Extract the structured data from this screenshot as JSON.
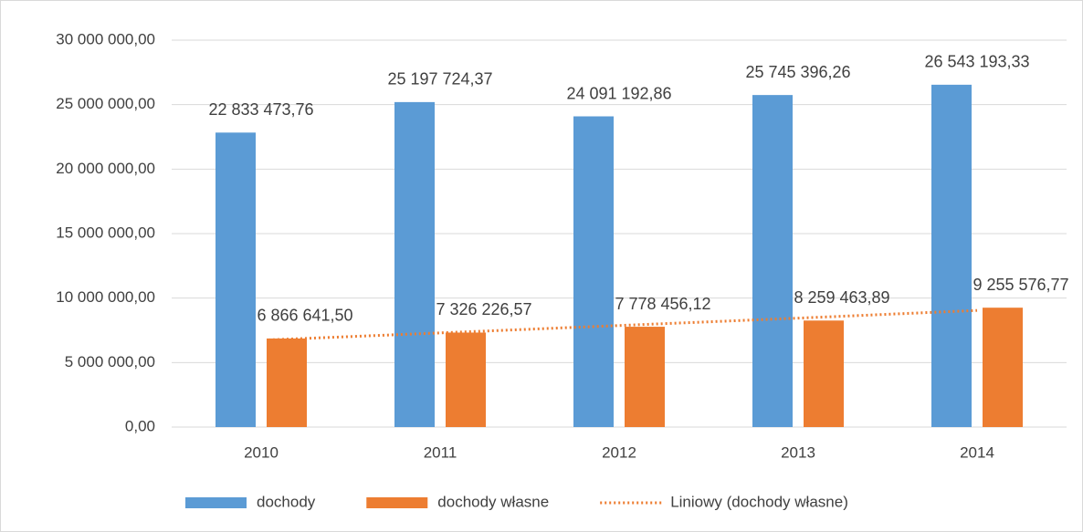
{
  "chart_data": {
    "type": "bar",
    "categories": [
      "2010",
      "2011",
      "2012",
      "2013",
      "2014"
    ],
    "series": [
      {
        "name": "dochody",
        "color": "#5b9bd5",
        "values": [
          22833473.76,
          25197724.37,
          24091192.86,
          25745396.26,
          26543193.33
        ],
        "value_labels": [
          "22 833 473,76",
          "25 197 724,37",
          "24 091 192,86",
          "25 745 396,26",
          "26 543 193,33"
        ]
      },
      {
        "name": "dochody własne",
        "color": "#ed7d31",
        "values": [
          6866641.5,
          7326226.57,
          7778456.12,
          8259463.89,
          9255576.77
        ],
        "value_labels": [
          "6 866 641,50",
          "7 326 226,57",
          "7 778 456,12",
          "8 259 463,89",
          "9 255 576,77"
        ]
      }
    ],
    "trendline": {
      "name": "Liniowy (dochody własne)",
      "type": "linear",
      "series": 1,
      "color": "#ed7d31"
    },
    "ylim": [
      0,
      30000000
    ],
    "yticks": [
      {
        "value": 0,
        "label": "0,00"
      },
      {
        "value": 5000000,
        "label": "5 000 000,00"
      },
      {
        "value": 10000000,
        "label": "10 000 000,00"
      },
      {
        "value": 15000000,
        "label": "15 000 000,00"
      },
      {
        "value": 20000000,
        "label": "20 000 000,00"
      },
      {
        "value": 25000000,
        "label": "25 000 000,00"
      },
      {
        "value": 30000000,
        "label": "30 000 000,00"
      }
    ],
    "grid": true,
    "legend": "bottom"
  }
}
